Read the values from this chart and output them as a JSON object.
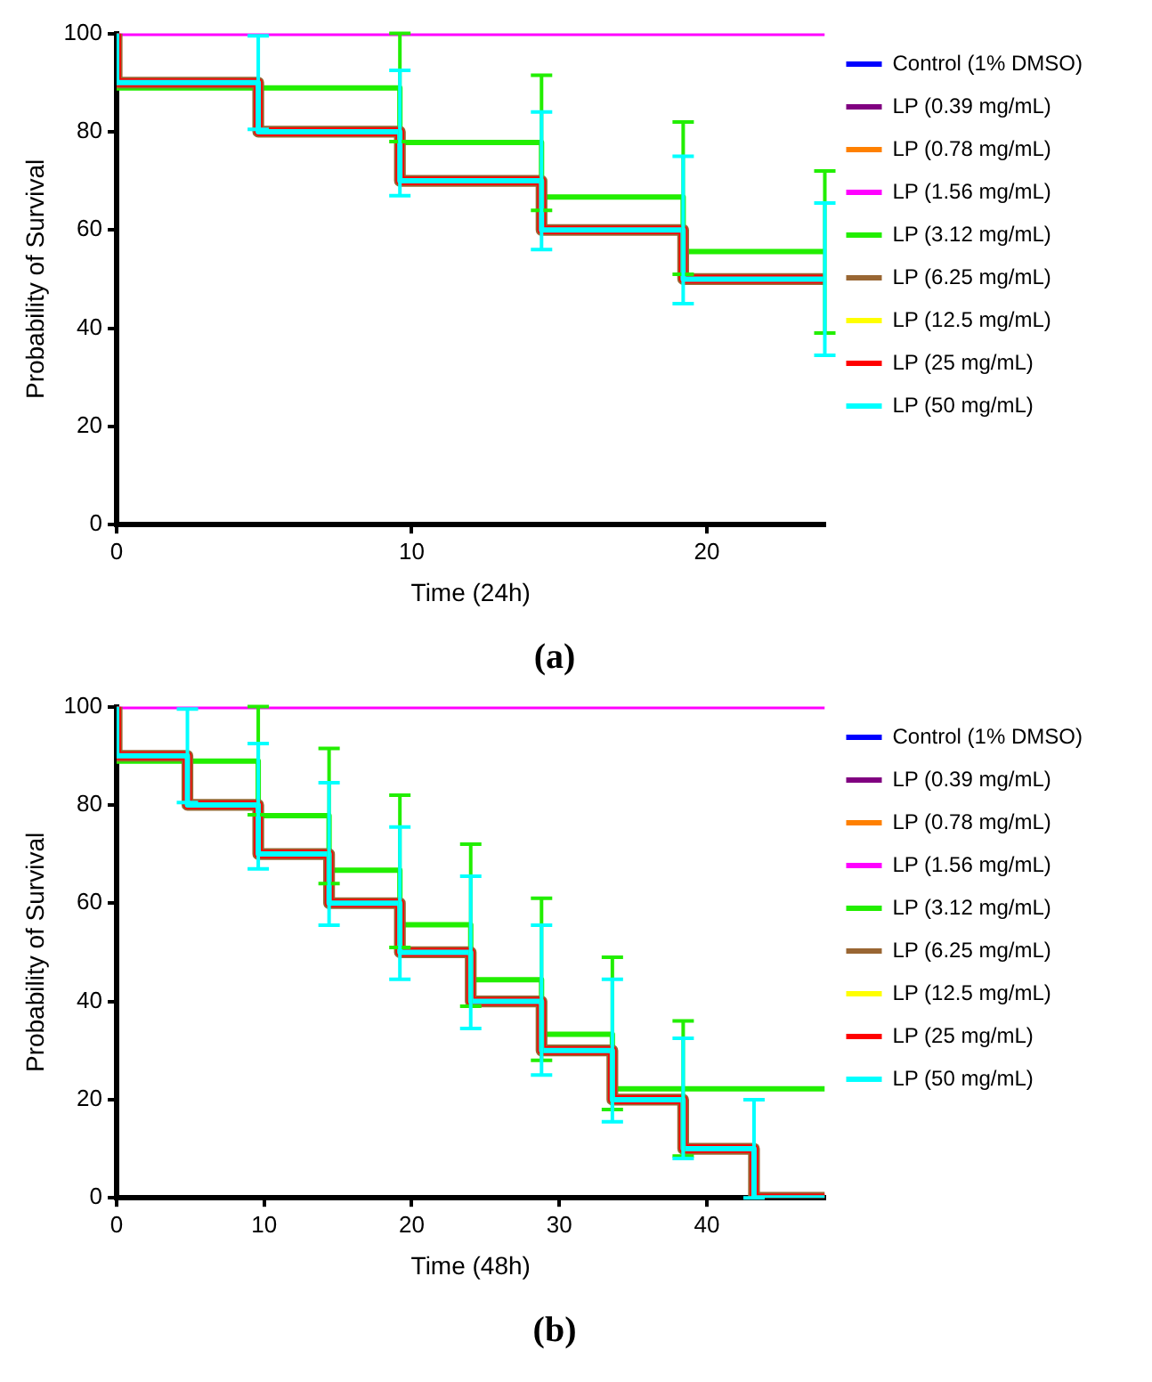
{
  "chart_data": [
    {
      "type": "step",
      "title": "(a)",
      "xlabel": "Time (24h)",
      "ylabel": "Probability of Survival",
      "xlim": [
        0,
        24
      ],
      "xticks": [
        0,
        10,
        20
      ],
      "ylim": [
        0,
        100
      ],
      "yticks": [
        0,
        20,
        40,
        60,
        80,
        100
      ],
      "legend": "right",
      "grid": false,
      "series": [
        {
          "name": "Control (1% DMSO)",
          "color": "#0000ff"
        },
        {
          "name": "LP (0.39 mg/mL)",
          "color": "#800080"
        },
        {
          "name": "LP (0.78 mg/mL)",
          "color": "#ff8000"
        },
        {
          "name": "LP (1.56 mg/mL)",
          "color": "#ff00ff",
          "x": [
            0,
            24
          ],
          "values": [
            100,
            100
          ]
        },
        {
          "name": "LP (3.12 mg/mL)",
          "color": "#22ee00",
          "x": [
            0,
            9.6,
            14.4,
            19.2,
            24
          ],
          "values": [
            100,
            88.9,
            77.8,
            66.7,
            55.6
          ],
          "errors": [
            null,
            [
              78,
              100
            ],
            [
              64,
              91.5
            ],
            [
              51,
              82
            ],
            [
              39,
              72
            ]
          ]
        },
        {
          "name": "LP (6.25 mg/mL)",
          "color": "#996633",
          "x": [
            0,
            4.8,
            9.6,
            14.4,
            19.2,
            24
          ],
          "values": [
            100,
            90,
            80,
            70,
            60,
            50
          ]
        },
        {
          "name": "LP (12.5 mg/mL)",
          "color": "#ffff00"
        },
        {
          "name": "LP (25 mg/mL)",
          "color": "#ff0000",
          "x": [
            0,
            4.8,
            9.6,
            14.4,
            19.2,
            24
          ],
          "values": [
            100,
            90,
            80,
            70,
            60,
            50
          ]
        },
        {
          "name": "LP (50 mg/mL)",
          "color": "#00ffff",
          "x": [
            0,
            4.8,
            9.6,
            14.4,
            19.2,
            24
          ],
          "values": [
            100,
            90,
            80,
            70,
            60,
            50
          ],
          "errors": [
            null,
            [
              80.5,
              99.5
            ],
            [
              67,
              92.5
            ],
            [
              56,
              84
            ],
            [
              45,
              75
            ],
            [
              34.5,
              65.5
            ]
          ]
        }
      ]
    },
    {
      "type": "step",
      "title": "(b)",
      "xlabel": "Time (48h)",
      "ylabel": "Probability of Survival",
      "xlim": [
        0,
        48
      ],
      "xticks": [
        0,
        10,
        20,
        30,
        40
      ],
      "ylim": [
        0,
        100
      ],
      "yticks": [
        0,
        20,
        40,
        60,
        80,
        100
      ],
      "legend": "right",
      "grid": false,
      "series": [
        {
          "name": "Control (1% DMSO)",
          "color": "#0000ff"
        },
        {
          "name": "LP (0.39 mg/mL)",
          "color": "#800080"
        },
        {
          "name": "LP (0.78 mg/mL)",
          "color": "#ff8000"
        },
        {
          "name": "LP (1.56 mg/mL)",
          "color": "#ff00ff",
          "x": [
            0,
            48
          ],
          "values": [
            100,
            100
          ]
        },
        {
          "name": "LP (3.12 mg/mL)",
          "color": "#22ee00",
          "x": [
            0,
            9.6,
            14.4,
            19.2,
            24,
            28.8,
            33.6,
            38.4,
            48
          ],
          "values": [
            100,
            88.9,
            77.8,
            66.7,
            55.6,
            44.4,
            33.3,
            22.2,
            22.2
          ],
          "errors": [
            null,
            [
              78,
              100
            ],
            [
              64,
              91.5
            ],
            [
              51,
              82
            ],
            [
              39,
              72
            ],
            [
              28,
              61
            ],
            [
              18,
              49
            ],
            [
              8.5,
              36
            ],
            null
          ]
        },
        {
          "name": "LP (6.25 mg/mL)",
          "color": "#996633",
          "x": [
            0,
            4.8,
            9.6,
            14.4,
            19.2,
            24,
            28.8,
            33.6,
            38.4,
            43.2,
            48
          ],
          "values": [
            100,
            90,
            80,
            70,
            60,
            50,
            40,
            30,
            20,
            10,
            0
          ]
        },
        {
          "name": "LP (12.5 mg/mL)",
          "color": "#ffff00"
        },
        {
          "name": "LP (25 mg/mL)",
          "color": "#ff0000",
          "x": [
            0,
            4.8,
            9.6,
            14.4,
            19.2,
            24,
            28.8,
            33.6,
            38.4,
            43.2,
            48
          ],
          "values": [
            100,
            90,
            80,
            70,
            60,
            50,
            40,
            30,
            20,
            10,
            0
          ]
        },
        {
          "name": "LP (50 mg/mL)",
          "color": "#00ffff",
          "x": [
            0,
            4.8,
            9.6,
            14.4,
            19.2,
            24,
            28.8,
            33.6,
            38.4,
            43.2,
            48
          ],
          "values": [
            100,
            90,
            80,
            70,
            60,
            50,
            40,
            30,
            20,
            10,
            0
          ],
          "errors": [
            null,
            [
              80.5,
              99.5
            ],
            [
              67,
              92.5
            ],
            [
              55.5,
              84.5
            ],
            [
              44.5,
              75.5
            ],
            [
              34.5,
              65.5
            ],
            [
              25,
              55.5
            ],
            [
              15.5,
              44.5
            ],
            [
              8,
              32.5
            ],
            [
              0,
              20
            ],
            null
          ]
        }
      ]
    }
  ]
}
